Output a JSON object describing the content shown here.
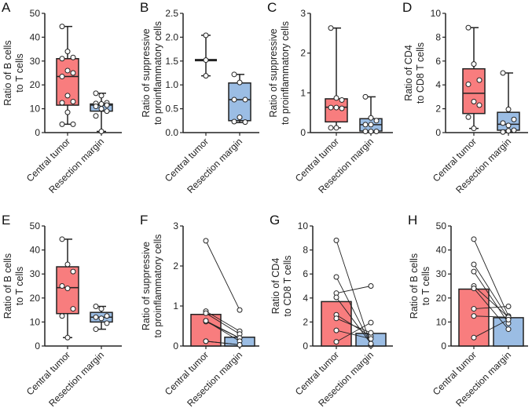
{
  "colors": {
    "central": "#f87d7e",
    "margin": "#9bbde4",
    "stroke": "#222222"
  },
  "chart_data": [
    {
      "panel": "A",
      "type": "box",
      "ylabel": [
        "Ratio of B cells",
        "to T cells"
      ],
      "ylim": [
        0,
        50
      ],
      "yticks": [
        0,
        10,
        20,
        30,
        40,
        50
      ],
      "categories": [
        "Central tumor",
        "Resection margin"
      ],
      "boxes": [
        {
          "q1": 11.5,
          "median": 23.5,
          "q3": 31,
          "min": 3.5,
          "max": 44.5,
          "points": [
            44.5,
            34,
            31.5,
            31,
            26,
            25,
            23.5,
            15.5,
            13,
            12.5,
            8.5,
            3.5,
            3.5
          ]
        },
        {
          "q1": 9,
          "median": 11.5,
          "q3": 12,
          "min": 0.5,
          "max": 16.5,
          "points": [
            16.5,
            15.5,
            12.5,
            12.2,
            12,
            11.5,
            11,
            10,
            9,
            7,
            0.5
          ]
        }
      ]
    },
    {
      "panel": "B",
      "type": "box",
      "ylabel": [
        "Ratio of suppressive",
        "to proinflammatory cells"
      ],
      "ylim": [
        0,
        2.5
      ],
      "yticks": [
        0.0,
        0.5,
        1.0,
        1.5,
        2.0,
        2.5
      ],
      "decimals": 1,
      "categories": [
        "Central tumor",
        "Resection margin"
      ],
      "boxes": [
        {
          "q1": 1.52,
          "median": 1.52,
          "q3": 1.52,
          "min": 1.19,
          "max": 2.04,
          "points": [
            2.04,
            1.52,
            1.19
          ]
        },
        {
          "q1": 0.25,
          "median": 0.69,
          "q3": 1.04,
          "min": 0.21,
          "max": 1.22,
          "points": [
            1.22,
            1.05,
            0.69,
            0.69,
            0.32,
            0.22,
            0.23
          ]
        }
      ]
    },
    {
      "panel": "C",
      "type": "box",
      "ylabel": [
        "Ratio of suppressive",
        "to proinflammatory cells"
      ],
      "ylim": [
        0,
        3
      ],
      "yticks": [
        0,
        1,
        2,
        3
      ],
      "categories": [
        "Central tumor",
        "Resection margin"
      ],
      "boxes": [
        {
          "q1": 0.27,
          "median": 0.64,
          "q3": 0.85,
          "min": 0.12,
          "max": 2.63,
          "points": [
            2.63,
            0.87,
            0.82,
            0.63,
            0.63,
            0.61,
            0.12,
            0.12
          ]
        },
        {
          "q1": 0.04,
          "median": 0.2,
          "q3": 0.35,
          "min": 0.03,
          "max": 0.9,
          "points": [
            0.9,
            0.37,
            0.3,
            0.2,
            0.2,
            0.03,
            0.03,
            0.03
          ]
        }
      ]
    },
    {
      "panel": "D",
      "type": "box",
      "ylabel": [
        "Ratio of CD4",
        "to CD8 T cells"
      ],
      "ylim": [
        0,
        10
      ],
      "yticks": [
        0,
        2,
        4,
        6,
        8,
        10
      ],
      "categories": [
        "Central tumor",
        "Resection margin"
      ],
      "boxes": [
        {
          "q1": 1.6,
          "median": 3.3,
          "q3": 5.35,
          "min": 0.35,
          "max": 8.8,
          "points": [
            8.8,
            5.75,
            4.4,
            4.05,
            2.6,
            2.3,
            1.3,
            0.35
          ]
        },
        {
          "q1": 0.2,
          "median": 0.7,
          "q3": 1.7,
          "min": 0.05,
          "max": 5.0,
          "points": [
            5.0,
            1.95,
            1.1,
            0.8,
            0.6,
            0.2,
            0.05,
            0.15
          ]
        }
      ]
    },
    {
      "panel": "E",
      "type": "box",
      "ylabel": [
        "Ratio of B cells",
        "to T cells"
      ],
      "ylim": [
        0,
        50
      ],
      "yticks": [
        0,
        10,
        20,
        30,
        40,
        50
      ],
      "categories": [
        "Central tumor",
        "Resection margin"
      ],
      "boxes": [
        {
          "q1": 13.5,
          "median": 24.3,
          "q3": 33,
          "min": 3.5,
          "max": 44.5,
          "points": [
            44.5,
            34,
            31,
            25,
            24,
            15.5,
            12.5,
            3.5
          ]
        },
        {
          "q1": 10,
          "median": 12,
          "q3": 14,
          "min": 7,
          "max": 16.5,
          "points": [
            16.5,
            15.5,
            12.5,
            12,
            11.5,
            9.5,
            7
          ]
        }
      ]
    },
    {
      "panel": "F",
      "type": "paired-bar",
      "ylabel": [
        "Ratio of suppressive",
        "to proinflammatory cells"
      ],
      "ylim": [
        0,
        3
      ],
      "yticks": [
        0,
        1,
        2,
        3
      ],
      "categories": [
        "Central tumor",
        "Resection margin"
      ],
      "means": [
        0.79,
        0.22
      ],
      "pairs": [
        [
          2.63,
          0.9
        ],
        [
          0.87,
          0.37
        ],
        [
          0.82,
          0.3
        ],
        [
          0.63,
          0.2
        ],
        [
          0.61,
          0.2
        ],
        [
          0.63,
          0.12
        ],
        [
          0.12,
          0.03
        ],
        [
          0.12,
          0.03
        ]
      ]
    },
    {
      "panel": "G",
      "type": "paired-bar",
      "ylabel": [
        "Ratio of CD4",
        "to CD8 T cells"
      ],
      "ylim": [
        0,
        10
      ],
      "yticks": [
        0,
        2,
        4,
        6,
        8,
        10
      ],
      "categories": [
        "Central tumor",
        "Resection margin"
      ],
      "means": [
        3.7,
        1.05
      ],
      "pairs": [
        [
          8.8,
          0.05
        ],
        [
          5.75,
          0.15
        ],
        [
          4.4,
          5.0
        ],
        [
          4.05,
          0.2
        ],
        [
          2.6,
          0.8
        ],
        [
          2.3,
          1.1
        ],
        [
          1.3,
          0.6
        ],
        [
          0.35,
          1.95
        ]
      ]
    },
    {
      "panel": "H",
      "type": "paired-bar",
      "ylabel": [
        "Ratio of B cells",
        "to T cells"
      ],
      "ylim": [
        0,
        50
      ],
      "yticks": [
        0,
        10,
        20,
        30,
        40,
        50
      ],
      "categories": [
        "Central tumor",
        "Resection margin"
      ],
      "means": [
        23.7,
        11.8
      ],
      "pairs": [
        [
          44.5,
          12.5
        ],
        [
          34,
          11.5
        ],
        [
          31,
          9.5
        ],
        [
          25,
          12
        ],
        [
          24,
          7
        ],
        [
          15.5,
          16.5
        ],
        [
          12.5,
          12
        ],
        [
          3.5,
          11
        ]
      ]
    }
  ]
}
